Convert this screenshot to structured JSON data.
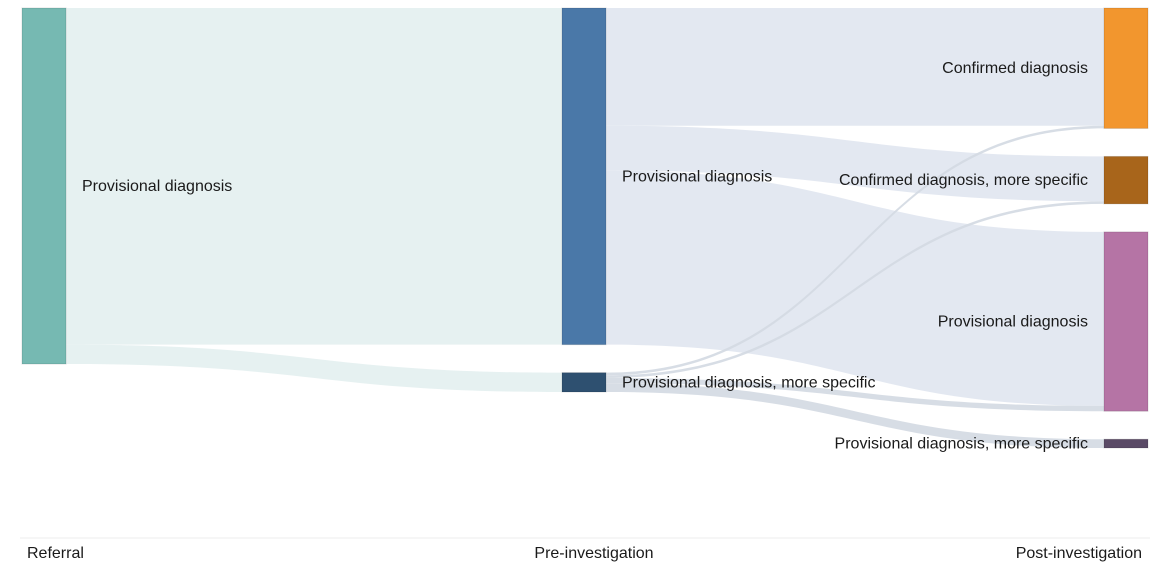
{
  "stages": [
    "Referral",
    "Pre-investigation",
    "Post-investigation"
  ],
  "nodes": [
    {
      "id": "ref_prov",
      "stage": 0,
      "label": "Provisional diagnosis",
      "color": "#76b9b2"
    },
    {
      "id": "pre_prov",
      "stage": 1,
      "label": "Provisional diagnosis",
      "color": "#4a78a8"
    },
    {
      "id": "pre_spec",
      "stage": 1,
      "label": "Provisional diagnosis, more specific",
      "color": "#2e5070"
    },
    {
      "id": "post_conf",
      "stage": 2,
      "label": "Confirmed diagnosis",
      "color": "#f2962e"
    },
    {
      "id": "post_conf_spec",
      "stage": 2,
      "label": "Confirmed diagnosis, more specific",
      "color": "#a8651b"
    },
    {
      "id": "post_prov",
      "stage": 2,
      "label": "Provisional diagnosis",
      "color": "#b574a5"
    },
    {
      "id": "post_prov_spec",
      "stage": 2,
      "label": "Provisional diagnosis, more specific",
      "color": "#5a4a66"
    }
  ],
  "links": [
    {
      "source": "ref_prov",
      "target": "pre_prov",
      "value": 76.6,
      "color": "#e3f0ef"
    },
    {
      "source": "ref_prov",
      "target": "pre_spec",
      "value": 4.4,
      "color": "#e3f0ef"
    },
    {
      "source": "pre_prov",
      "target": "post_conf",
      "value": 26.8,
      "color": "#e0e6f0"
    },
    {
      "source": "pre_prov",
      "target": "post_conf_spec",
      "value": 10.2,
      "color": "#e0e6f0"
    },
    {
      "source": "pre_prov",
      "target": "post_prov",
      "value": 39.6,
      "color": "#e0e6f0"
    },
    {
      "source": "pre_spec",
      "target": "post_conf",
      "value": 0.6,
      "color": "#d3d9e2"
    },
    {
      "source": "pre_spec",
      "target": "post_conf_spec",
      "value": 0.6,
      "color": "#d3d9e2"
    },
    {
      "source": "pre_spec",
      "target": "post_prov",
      "value": 1.2,
      "color": "#d3d9e2"
    },
    {
      "source": "pre_spec",
      "target": "post_prov_spec",
      "value": 2.0,
      "color": "#d3d9e2"
    }
  ]
}
